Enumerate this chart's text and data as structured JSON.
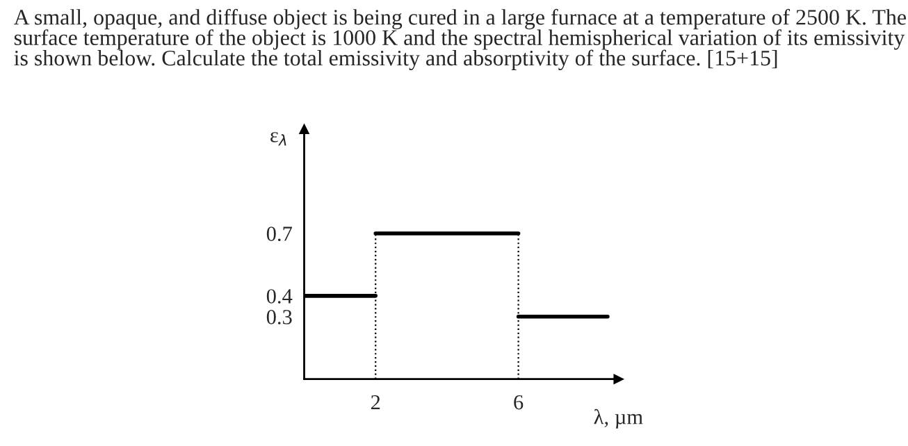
{
  "chart_data": {
    "type": "step",
    "title": "A small, opaque, and diffuse object is being cured in a large furnace at a temperature of 2500 K. The surface temperature of the object is 1000 K and the spectral hemispherical variation of its emissivity is shown below. Calculate the total emissivity and absorptivity of the surface. [15+15]",
    "xlabel": "λ, µm",
    "ylabel": "ε$_{λ}$",
    "x": [
      0,
      2,
      6,
      8.5
    ],
    "values": [
      0.4,
      0.7,
      0.3,
      0.3
    ],
    "color": "#000000",
    "xlim": [
      0,
      8.8
    ],
    "ylim": [
      0,
      1.2
    ],
    "xticks": [
      2,
      6
    ],
    "yticks": [
      0.3,
      0.4,
      0.7
    ],
    "ref_lines": [
      {
        "axis": "x",
        "value": 2,
        "line_style": "dotted"
      },
      {
        "axis": "x",
        "value": 6,
        "line_style": "dotted"
      }
    ],
    "grid": false
  }
}
